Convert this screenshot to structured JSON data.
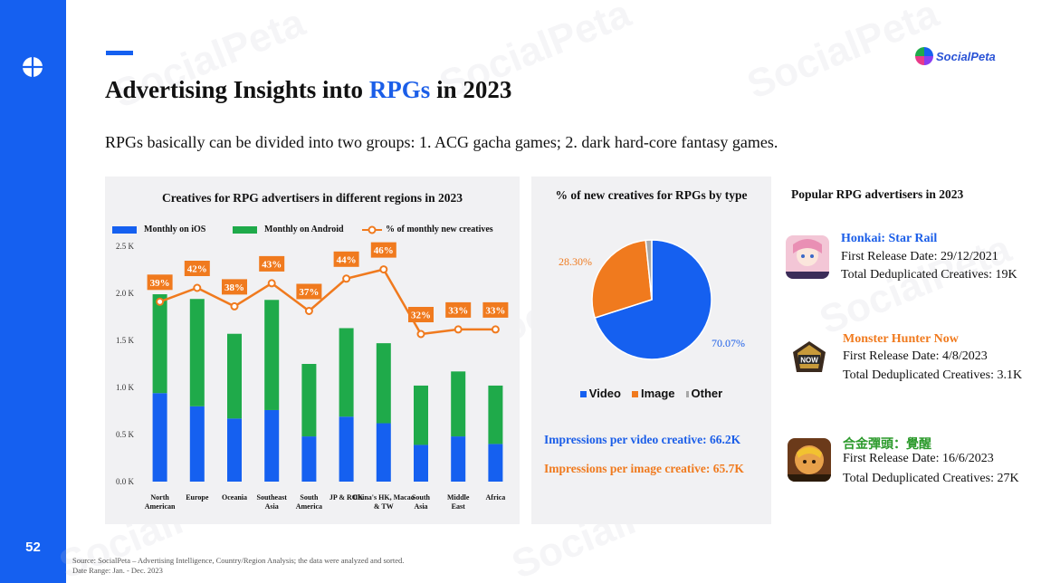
{
  "page": {
    "number": "52",
    "title_before": "Advertising Insights into ",
    "title_highlight": "RPGs",
    "title_after": " in 2023",
    "subtitle": "RPGs basically can be divided into two groups: 1. ACG gacha games; 2. dark hard-core fantasy games.",
    "brand": "SocialPeta",
    "watermark": "SocialPeta"
  },
  "bar_chart": {
    "title": "Creatives for RPG advertisers in different regions in 2023",
    "legend": {
      "ios": "Monthly on iOS",
      "android": "Monthly on Android",
      "pct": "% of monthly new creatives"
    }
  },
  "pie_chart": {
    "title": "% of new creatives for RPGs by type",
    "legend": [
      "Video",
      "Image",
      "Other"
    ],
    "labels": {
      "video": "70.07%",
      "image": "28.30%"
    }
  },
  "impressions": {
    "video": "Impressions per video creative: 66.2K",
    "image": "Impressions per image creative: 65.7K"
  },
  "advertisers": {
    "title": "Popular RPG advertisers in 2023",
    "items": [
      {
        "name": "Honkai: Star Rail",
        "release": "First Release Date: 29/12/2021",
        "creatives": "Total Deduplicated Creatives: 19K",
        "color": "#1b5ee8"
      },
      {
        "name": "Monster Hunter Now",
        "release": "First Release Date: 4/8/2023",
        "creatives": "Total Deduplicated Creatives: 3.1K",
        "color": "#f07a1e"
      },
      {
        "name": "合金彈頭：覺醒",
        "release": "First Release Date: 16/6/2023",
        "creatives": "Total Deduplicated Creatives: 27K",
        "color": "#2c9a2c"
      }
    ]
  },
  "source": {
    "line1": "Source: SocialPeta – Advertising Intelligence, Country/Region Analysis; the data were analyzed and sorted.",
    "line2": "Date Range: Jan. - Dec. 2023"
  },
  "colors": {
    "ios": "#1560f0",
    "android": "#1faa4a",
    "pct_line": "#f07a1e",
    "other": "#a8a8a8"
  },
  "chart_data": [
    {
      "type": "bar",
      "stacked": true,
      "title": "Creatives for RPG advertisers in different regions in 2023",
      "categories": [
        "North American",
        "Europe",
        "Oceania",
        "Southeast Asia",
        "South America",
        "JP & ROK",
        "China's HK, Macao & TW",
        "South Asia",
        "Middle East",
        "Africa"
      ],
      "series": [
        {
          "name": "Monthly on iOS",
          "values": [
            940,
            800,
            670,
            760,
            480,
            690,
            620,
            390,
            480,
            400
          ]
        },
        {
          "name": "Monthly on Android",
          "values": [
            1050,
            1140,
            900,
            1170,
            770,
            940,
            850,
            630,
            690,
            620
          ]
        }
      ],
      "line_series": {
        "name": "% of monthly new creatives",
        "values": [
          39,
          42,
          38,
          43,
          37,
          44,
          46,
          32,
          33,
          33
        ],
        "labels": [
          "39%",
          "42%",
          "38%",
          "43%",
          "37%",
          "44%",
          "46%",
          "32%",
          "33%",
          "33%"
        ]
      },
      "yticks": [
        "0.0 K",
        "0.5 K",
        "1.0 K",
        "1.5 K",
        "2.0 K",
        "2.5 K"
      ],
      "ylim": [
        0,
        2500
      ],
      "grid": false,
      "legend_position": "top"
    },
    {
      "type": "pie",
      "title": "% of new creatives for RPGs by type",
      "labels": [
        "Video",
        "Image",
        "Other"
      ],
      "values": [
        70.07,
        28.3,
        1.63
      ],
      "legend_position": "bottom"
    }
  ]
}
